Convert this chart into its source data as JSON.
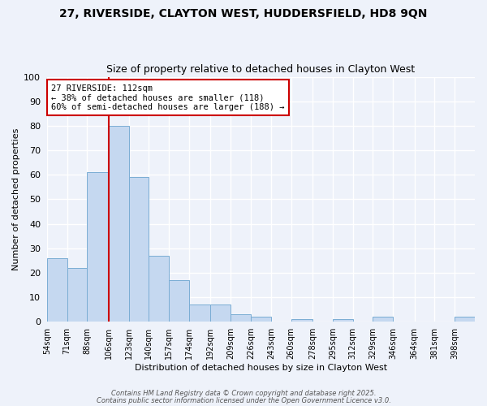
{
  "title": "27, RIVERSIDE, CLAYTON WEST, HUDDERSFIELD, HD8 9QN",
  "subtitle": "Size of property relative to detached houses in Clayton West",
  "xlabel": "Distribution of detached houses by size in Clayton West",
  "ylabel": "Number of detached properties",
  "bar_values": [
    26,
    22,
    61,
    80,
    59,
    27,
    17,
    7,
    7,
    3,
    2,
    0,
    1,
    0,
    1,
    0,
    2,
    0,
    0,
    0,
    2
  ],
  "all_labels": [
    "54sqm",
    "71sqm",
    "88sqm",
    "106sqm",
    "123sqm",
    "140sqm",
    "157sqm",
    "174sqm",
    "192sqm",
    "209sqm",
    "226sqm",
    "243sqm",
    "260sqm",
    "278sqm",
    "295sqm",
    "312sqm",
    "329sqm",
    "346sqm",
    "364sqm",
    "381sqm",
    "398sqm"
  ],
  "bar_color": "#c5d8f0",
  "bar_edge_color": "#7aadd4",
  "background_color": "#eef2fa",
  "grid_color": "#ffffff",
  "vline_x_idx": 3,
  "vline_color": "#cc0000",
  "annotation_title": "27 RIVERSIDE: 112sqm",
  "annotation_line1": "← 38% of detached houses are smaller (118)",
  "annotation_line2": "60% of semi-detached houses are larger (188) →",
  "annotation_box_color": "#ffffff",
  "annotation_box_edge": "#cc0000",
  "footer1": "Contains HM Land Registry data © Crown copyright and database right 2025.",
  "footer2": "Contains public sector information licensed under the Open Government Licence v3.0.",
  "ylim": [
    0,
    100
  ],
  "bin_edges": [
    54,
    71,
    88,
    106,
    123,
    140,
    157,
    174,
    192,
    209,
    226,
    243,
    260,
    278,
    295,
    312,
    329,
    346,
    364,
    381,
    398,
    415
  ]
}
